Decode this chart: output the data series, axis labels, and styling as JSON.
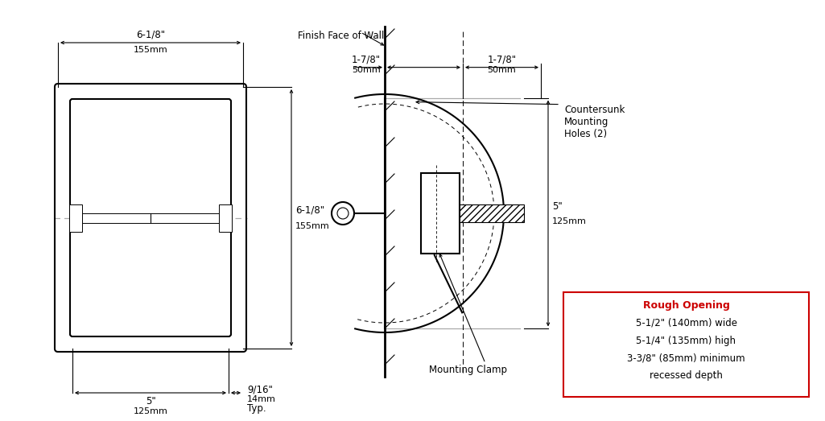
{
  "bg_color": "#ffffff",
  "line_color": "#000000",
  "gray_color": "#aaaaaa",
  "red_color": "#cc0000",
  "annotations": {
    "width_top_label": "6-1/8\"",
    "width_top_mm": "155mm",
    "height_right_label": "6-1/8\"",
    "height_right_mm": "155mm",
    "width_bot_label": "5\"",
    "width_bot_mm": "125mm",
    "border_label": "9/16\"",
    "border_mm": "14mm",
    "border_typ": "Typ.",
    "side_left_label": "1-7/8\"",
    "side_left_mm": "50mm",
    "side_right_label": "1-7/8\"",
    "side_right_mm": "50mm",
    "side_height_label": "5\"",
    "side_height_mm": "125mm",
    "wall_label": "Finish Face of Wall",
    "mount_holes_label": "Countersunk\nMounting\nHoles (2)",
    "mount_clamp_label": "Mounting Clamp",
    "rough_title": "Rough Opening",
    "rough_line1": "5-1/2\" (140mm) wide",
    "rough_line2": "5-1/4\" (135mm) high",
    "rough_line3": "3-3/8\" (85mm) minimum",
    "rough_line4": "recessed depth"
  }
}
